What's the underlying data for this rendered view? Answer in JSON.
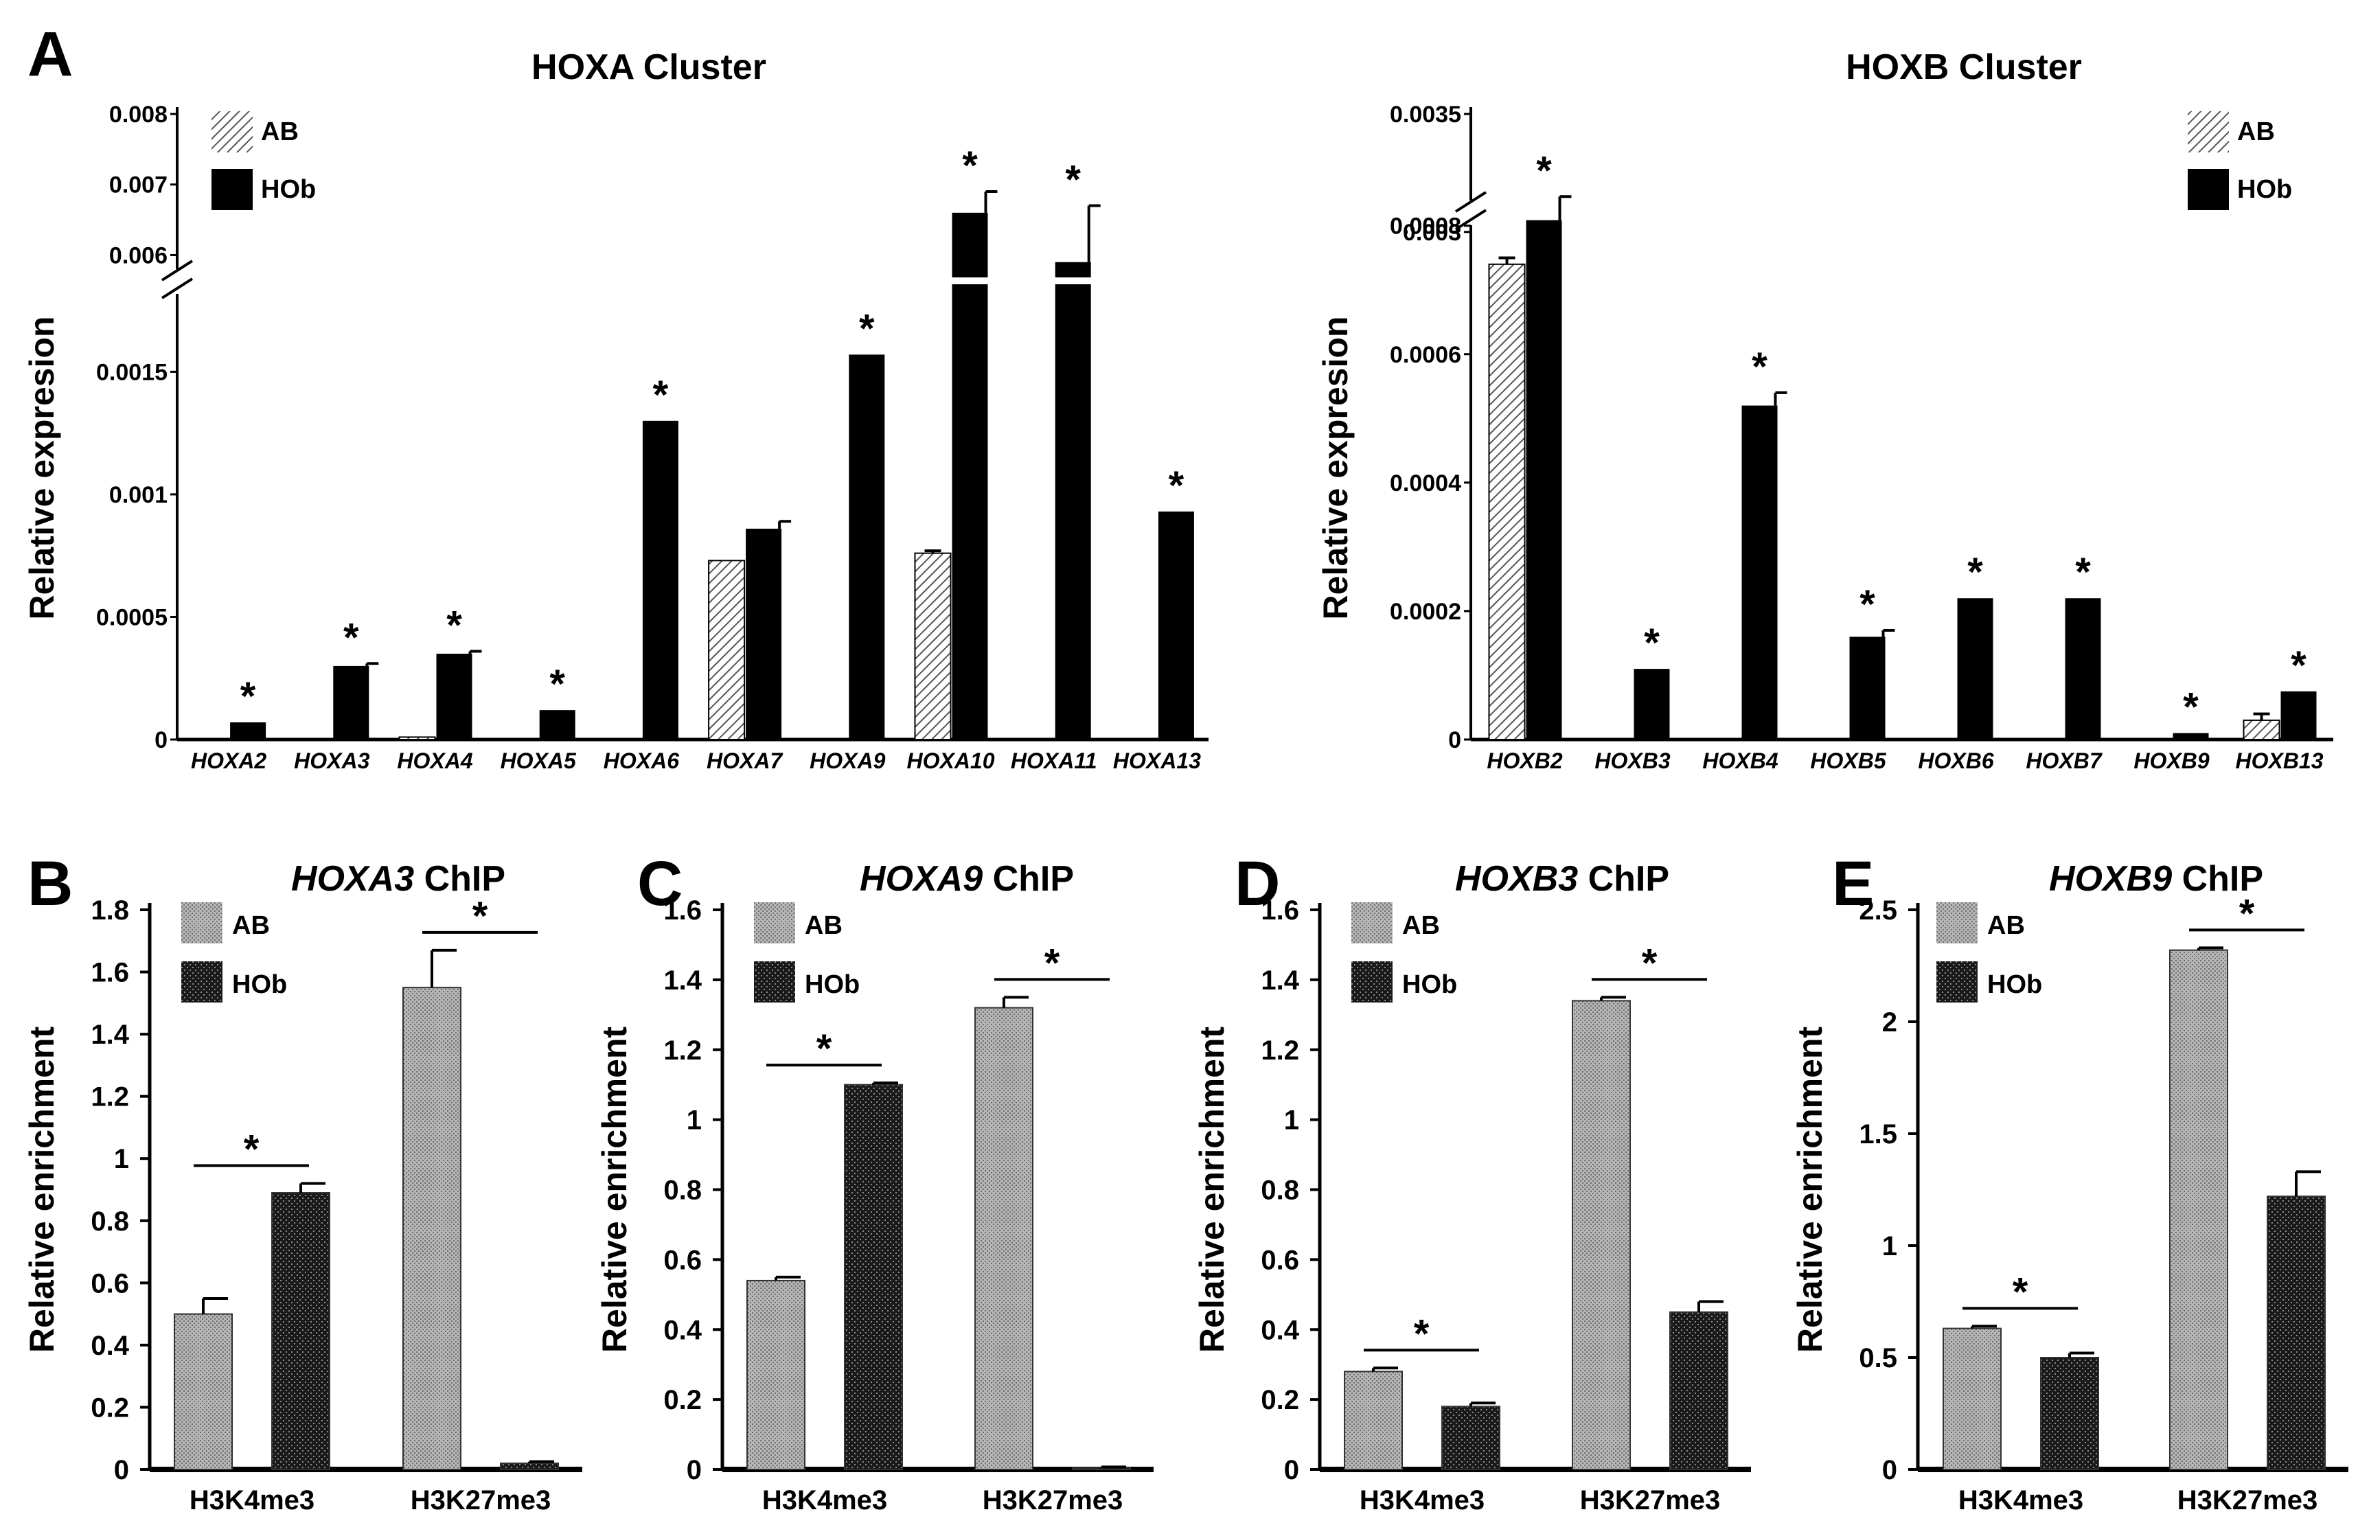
{
  "colors": {
    "black": "#000000",
    "gray": "#9a9a9a",
    "axis": "#000000"
  },
  "legend": {
    "ab": "AB",
    "hob": "HOb"
  },
  "chart_data": [
    {
      "panel": "A",
      "title": "HOXA Cluster",
      "type": "bar",
      "ylabel": "Relative expresion",
      "categories": [
        "HOXA2",
        "HOXA3",
        "HOXA4",
        "HOXA5",
        "HOXA6",
        "HOXA7",
        "HOXA9",
        "HOXA10",
        "HOXA11",
        "HOXA13"
      ],
      "series": [
        {
          "name": "AB",
          "values": [
            0,
            0,
            1e-05,
            0,
            0,
            0.00073,
            0,
            0.00076,
            0,
            0
          ],
          "errors": [
            0,
            0,
            0,
            0,
            0,
            0,
            0,
            1e-05,
            0,
            0
          ]
        },
        {
          "name": "HOb",
          "values": [
            7e-05,
            0.0003,
            0.00035,
            0.00012,
            0.0013,
            0.00086,
            0.00157,
            0.0066,
            0.0059,
            0.00093
          ],
          "errors": [
            0,
            1e-05,
            1e-05,
            0,
            0,
            3e-05,
            0,
            0.0003,
            0.0008,
            0
          ]
        }
      ],
      "significant": [
        true,
        true,
        true,
        true,
        true,
        false,
        true,
        true,
        true,
        true
      ],
      "yticks_lower": [
        "0",
        "0.0005",
        "0.001",
        "0.0015"
      ],
      "yticks_upper": [
        "0.006",
        "0.007",
        "0.008"
      ],
      "ylim_lower": [
        0,
        0.0017
      ],
      "ylim_upper": [
        0.0058,
        0.008
      ]
    },
    {
      "panel": "A",
      "title": "HOXB Cluster",
      "type": "bar",
      "ylabel": "Relative expresion",
      "categories": [
        "HOXB2",
        "HOXB3",
        "HOXB4",
        "HOXB5",
        "HOXB6",
        "HOXB7",
        "HOXB9",
        "HOXB13"
      ],
      "series": [
        {
          "name": "AB",
          "values": [
            0.00074,
            0,
            0,
            0,
            0,
            0,
            0,
            3e-05
          ],
          "errors": [
            1e-05,
            0,
            0,
            0,
            0,
            0,
            0,
            1e-05
          ]
        },
        {
          "name": "HOb",
          "values": [
            0.00305,
            0.00011,
            0.00052,
            0.00016,
            0.00022,
            0.00022,
            1e-05,
            7.5e-05
          ],
          "errors": [
            0.0001,
            0,
            2e-05,
            1e-05,
            0,
            0,
            0,
            0
          ]
        }
      ],
      "significant": [
        true,
        true,
        true,
        true,
        true,
        true,
        true,
        true
      ],
      "yticks_lower": [
        "0",
        "0.0002",
        "0.0004",
        "0.0006",
        "0.0008"
      ],
      "yticks_upper": [
        "0.003",
        "0.0035"
      ],
      "ylim_lower": [
        0,
        0.00082
      ],
      "ylim_upper": [
        0.00295,
        0.0035
      ]
    },
    {
      "panel": "B",
      "title_gene": "HOXA3",
      "title_suffix": " ChIP",
      "type": "bar",
      "ylabel": "Relative enrichment",
      "categories": [
        "H3K4me3",
        "H3K27me3"
      ],
      "series": [
        {
          "name": "AB",
          "values": [
            0.5,
            1.55
          ],
          "errors": [
            0.05,
            0.12
          ]
        },
        {
          "name": "HOb",
          "values": [
            0.89,
            0.02
          ],
          "errors": [
            0.03,
            0.005
          ]
        }
      ],
      "yticks": [
        "0",
        "0.2",
        "0.4",
        "0.6",
        "0.8",
        "1",
        "1.2",
        "1.4",
        "1.6",
        "1.8"
      ],
      "ylim": [
        0,
        1.8
      ],
      "significant": [
        true,
        true
      ]
    },
    {
      "panel": "C",
      "title_gene": "HOXA9",
      "title_suffix": " ChIP",
      "type": "bar",
      "ylabel": "Relative enrichment",
      "categories": [
        "H3K4me3",
        "H3K27me3"
      ],
      "series": [
        {
          "name": "AB",
          "values": [
            0.54,
            1.32
          ],
          "errors": [
            0.01,
            0.03
          ]
        },
        {
          "name": "HOb",
          "values": [
            1.1,
            0.005
          ],
          "errors": [
            0.005,
            0.002
          ]
        }
      ],
      "yticks": [
        "0",
        "0.2",
        "0.4",
        "0.6",
        "0.8",
        "1",
        "1.2",
        "1.4",
        "1.6"
      ],
      "ylim": [
        0,
        1.6
      ],
      "significant": [
        true,
        true
      ]
    },
    {
      "panel": "D",
      "title_gene": "HOXB3",
      "title_suffix": " ChIP",
      "type": "bar",
      "ylabel": "Relative enrichment",
      "categories": [
        "H3K4me3",
        "H3K27me3"
      ],
      "series": [
        {
          "name": "AB",
          "values": [
            0.28,
            1.34
          ],
          "errors": [
            0.01,
            0.01
          ]
        },
        {
          "name": "HOb",
          "values": [
            0.18,
            0.45
          ],
          "errors": [
            0.01,
            0.03
          ]
        }
      ],
      "yticks": [
        "0",
        "0.2",
        "0.4",
        "0.6",
        "0.8",
        "1",
        "1.2",
        "1.4",
        "1.6"
      ],
      "ylim": [
        0,
        1.6
      ],
      "significant": [
        true,
        true
      ]
    },
    {
      "panel": "E",
      "title_gene": "HOXB9",
      "title_suffix": " ChIP",
      "type": "bar",
      "ylabel": "Relative enrichment",
      "categories": [
        "H3K4me3",
        "H3K27me3"
      ],
      "series": [
        {
          "name": "AB",
          "values": [
            0.63,
            2.32
          ],
          "errors": [
            0.01,
            0.01
          ]
        },
        {
          "name": "HOb",
          "values": [
            0.5,
            1.22
          ],
          "errors": [
            0.02,
            0.11
          ]
        }
      ],
      "yticks": [
        "0",
        "0.5",
        "1",
        "1.5",
        "2",
        "2.5"
      ],
      "ylim": [
        0,
        2.5
      ],
      "significant": [
        true,
        true
      ]
    }
  ]
}
